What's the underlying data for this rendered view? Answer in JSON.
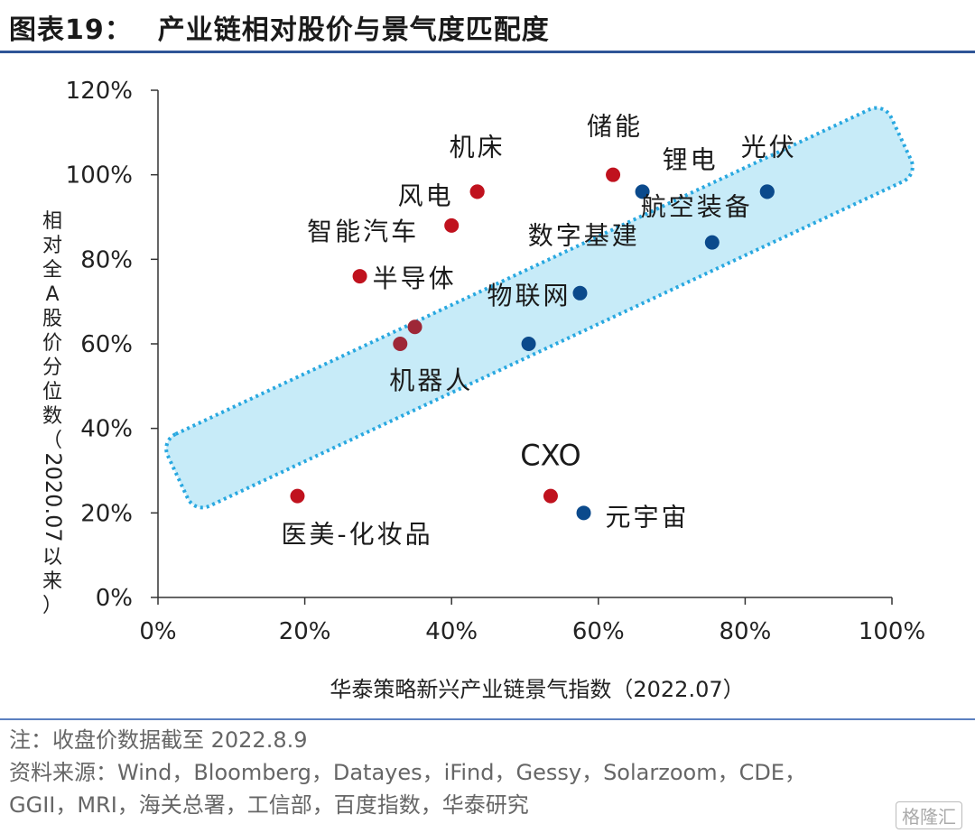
{
  "figure": {
    "title_prefix": "图表19：",
    "title_text": "产业链相对股价与景气度匹配度"
  },
  "chart_data": {
    "type": "scatter",
    "xlabel": "华泰策略新兴产业链景气指数（2022.07）",
    "ylabel": "相对全A股价分位数（2020.07以来）",
    "xlim": [
      0,
      1
    ],
    "ylim": [
      0,
      1.2
    ],
    "x_ticks": [
      "0%",
      "20%",
      "40%",
      "60%",
      "80%",
      "100%"
    ],
    "y_ticks": [
      "0%",
      "20%",
      "40%",
      "60%",
      "80%",
      "100%",
      "120%"
    ],
    "highlight_band": {
      "shape": "dotted-rounded-band",
      "fill": "#c7ebf8",
      "stroke": "#29a8e0"
    },
    "colors": {
      "red": "#c0121e",
      "darkred": "#9e2737",
      "blue": "#0b4a8c"
    },
    "points": [
      {
        "x": 0.19,
        "y": 0.24,
        "color": "red",
        "label": "医美-化妆品"
      },
      {
        "x": 0.275,
        "y": 0.76,
        "color": "red",
        "label": "半导体"
      },
      {
        "x": 0.4,
        "y": 0.88,
        "color": "red",
        "label": "智能汽车"
      },
      {
        "x": 0.435,
        "y": 0.96,
        "color": "red",
        "label": "风电"
      },
      {
        "x": 0.435,
        "y": 0.96,
        "color": "red",
        "label": "机床"
      },
      {
        "x": 0.62,
        "y": 1.0,
        "color": "red",
        "label": "储能"
      },
      {
        "x": 0.535,
        "y": 0.24,
        "color": "red",
        "label": "CXO"
      },
      {
        "x": 0.33,
        "y": 0.6,
        "color": "darkred",
        "label": "机器人"
      },
      {
        "x": 0.35,
        "y": 0.64,
        "color": "darkred",
        "label": ""
      },
      {
        "x": 0.505,
        "y": 0.6,
        "color": "blue",
        "label": ""
      },
      {
        "x": 0.575,
        "y": 0.72,
        "color": "blue",
        "label": "物联网"
      },
      {
        "x": 0.58,
        "y": 0.2,
        "color": "blue",
        "label": "元宇宙"
      },
      {
        "x": 0.66,
        "y": 0.96,
        "color": "blue",
        "label": "锂电"
      },
      {
        "x": 0.755,
        "y": 0.84,
        "color": "blue",
        "label": "数字基建"
      },
      {
        "x": 0.83,
        "y": 0.96,
        "color": "blue",
        "label": "航空装备"
      },
      {
        "x": 0.83,
        "y": 0.96,
        "color": "blue",
        "label": "光伏"
      }
    ]
  },
  "notes": {
    "line1": "注：收盘价数据截至 2022.8.9",
    "line2": "资料来源：Wind，Bloomberg，Datayes，iFind，Gessy，Solarzoom，CDE，",
    "line3": "GGII，MRI，海关总署，工信部，百度指数，华泰研究"
  },
  "watermark": "格隆汇"
}
